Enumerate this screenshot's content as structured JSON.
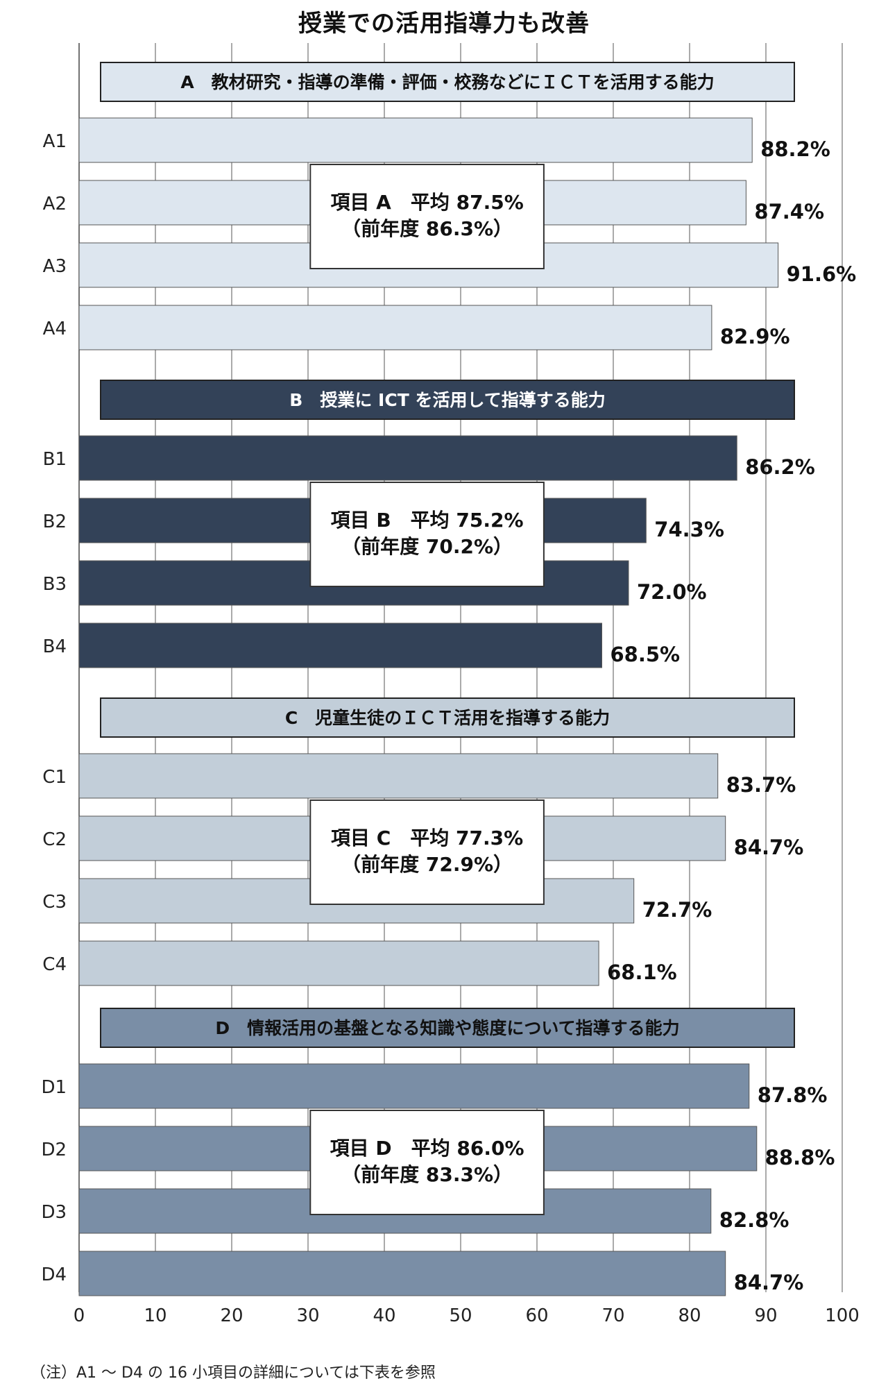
{
  "title": "授業での活用指導力も改善",
  "footnote": "（注）A1 ～ D4 の 16 小項目の詳細については下表を参照",
  "chart_data": {
    "type": "bar",
    "orientation": "horizontal",
    "xlim": [
      0,
      100
    ],
    "x_ticks": [
      "0",
      "10",
      "20",
      "30",
      "40",
      "50",
      "60",
      "70",
      "80",
      "90",
      "100"
    ],
    "grid": true,
    "value_suffix": "%",
    "groups": [
      {
        "header": "A　教材研究・指導の準備・評価・校務などにＩＣＴを活用する能力",
        "color": "#dde6ef",
        "header_color": "#dde6ef",
        "header_text_color": "#111111",
        "categories": [
          "A1",
          "A2",
          "A3",
          "A4"
        ],
        "values": [
          88.2,
          87.4,
          91.6,
          82.9
        ],
        "value_labels": [
          "88.2%",
          "87.4%",
          "91.6%",
          "82.9%"
        ],
        "summary_line1": "項目 A　平均 87.5%",
        "summary_line2": "（前年度 86.3%）",
        "average": 87.5,
        "previous_year": 86.3
      },
      {
        "header": "B　授業に ICT を活用して指導する能力",
        "color": "#334258",
        "header_color": "#334258",
        "header_text_color": "#ffffff",
        "categories": [
          "B1",
          "B2",
          "B3",
          "B4"
        ],
        "values": [
          86.2,
          74.3,
          72.0,
          68.5
        ],
        "value_labels": [
          "86.2%",
          "74.3%",
          "72.0%",
          "68.5%"
        ],
        "summary_line1": "項目 B　平均 75.2%",
        "summary_line2": "（前年度 70.2%）",
        "average": 75.2,
        "previous_year": 70.2
      },
      {
        "header": "C　児童生徒のＩＣＴ活用を指導する能力",
        "color": "#c2ced9",
        "header_color": "#c2ced9",
        "header_text_color": "#111111",
        "categories": [
          "C1",
          "C2",
          "C3",
          "C4"
        ],
        "values": [
          83.7,
          84.7,
          72.7,
          68.1
        ],
        "value_labels": [
          "83.7%",
          "84.7%",
          "72.7%",
          "68.1%"
        ],
        "summary_line1": "項目 C　平均 77.3%",
        "summary_line2": "（前年度 72.9%）",
        "average": 77.3,
        "previous_year": 72.9
      },
      {
        "header": "D　情報活用の基盤となる知識や態度について指導する能力",
        "color": "#7a8ea6",
        "header_color": "#7a8ea6",
        "header_text_color": "#111111",
        "categories": [
          "D1",
          "D2",
          "D3",
          "D4"
        ],
        "values": [
          87.8,
          88.8,
          82.8,
          84.7
        ],
        "value_labels": [
          "87.8%",
          "88.8%",
          "82.8%",
          "84.7%"
        ],
        "summary_line1": "項目 D　平均 86.0%",
        "summary_line2": "（前年度 83.3%）",
        "average": 86.0,
        "previous_year": 83.3
      }
    ]
  }
}
